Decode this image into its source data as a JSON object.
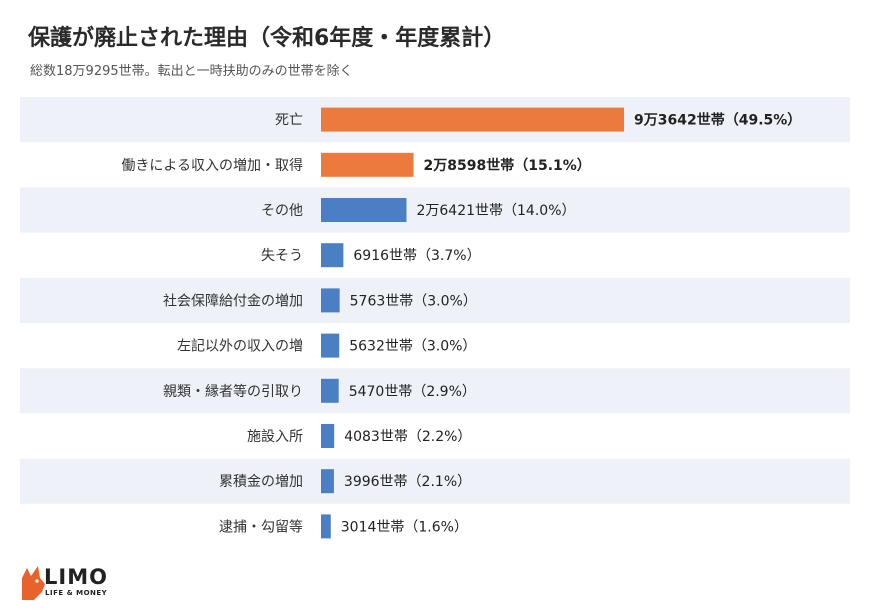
{
  "title": "保護が廃止された理由（令和6年度・年度累計）",
  "subtitle": "総数18万9295世帯。転出と一時扶助のみの世帯を除く",
  "brand": {
    "name": "LIMO",
    "tagline": "LIFE & MONEY",
    "color": "#e8622c"
  },
  "colors": {
    "highlight": "#ec7a3c",
    "normal": "#4a7fc4",
    "stripe": "#eef2f8"
  },
  "chart_data": {
    "type": "bar",
    "orientation": "horizontal",
    "title": "保護が廃止された理由（令和6年度・年度累計）",
    "categories": [
      "死亡",
      "働きによる収入の増加・取得",
      "その他",
      "失そう",
      "社会保障給付金の増加",
      "左記以外の収入の増",
      "親類・縁者等の引取り",
      "施設入所",
      "累積金の増加",
      "逮捕・勾留等"
    ],
    "values": [
      93642,
      28598,
      26421,
      6916,
      5763,
      5632,
      5470,
      4083,
      3996,
      3014
    ],
    "percent": [
      49.5,
      15.1,
      14.0,
      3.7,
      3.0,
      3.0,
      2.9,
      2.2,
      2.1,
      1.6
    ],
    "labels": [
      "9万3642世帯（49.5%）",
      "2万8598世帯（15.1%）",
      "2万6421世帯（14.0%）",
      "6916世帯（3.7%）",
      "5763世帯（3.0%）",
      "5632世帯（3.0%）",
      "5470世帯（2.9%）",
      "4083世帯（2.2%）",
      "3996世帯（2.1%）",
      "3014世帯（1.6%）"
    ],
    "highlighted": [
      true,
      true,
      false,
      false,
      false,
      false,
      false,
      false,
      false,
      false
    ],
    "grid": false
  }
}
